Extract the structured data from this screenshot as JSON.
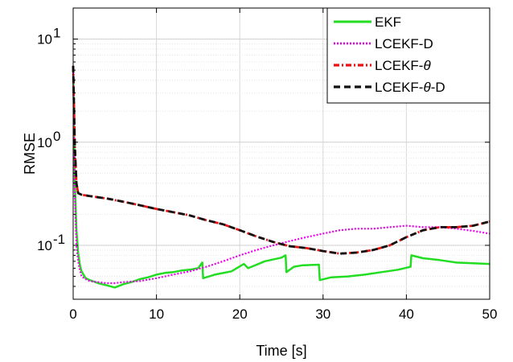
{
  "chart_data": {
    "type": "line",
    "title": "",
    "xlabel": "Time [s]",
    "ylabel": "RMSE",
    "xlim": [
      0,
      50
    ],
    "ylim": [
      0.03,
      20
    ],
    "yscale": "log",
    "grid": true,
    "legend_position": "top-right",
    "x_ticks": [
      "0",
      "10",
      "20",
      "30",
      "40",
      "50"
    ],
    "y_ticks": [
      {
        "base": "10",
        "exp": "-1",
        "value": 0.1
      },
      {
        "base": "10",
        "exp": "0",
        "value": 1
      },
      {
        "base": "10",
        "exp": "1",
        "value": 10
      }
    ],
    "series": [
      {
        "name": "EKF",
        "color": "#22dd22",
        "style": "solid",
        "x": [
          0,
          0.2,
          0.4,
          0.6,
          0.8,
          1,
          1.5,
          2,
          3,
          4,
          5,
          6,
          7,
          8,
          9,
          10,
          11,
          12,
          13,
          14,
          15,
          15.5,
          15.6,
          17,
          19,
          20.5,
          21,
          23,
          25,
          25.5,
          25.6,
          26.5,
          27.5,
          29.5,
          29.6,
          31,
          33,
          35,
          37,
          39,
          40.5,
          40.6,
          42,
          44,
          45,
          46,
          48,
          50
        ],
        "values": [
          5.5,
          0.4,
          0.14,
          0.085,
          0.065,
          0.056,
          0.048,
          0.046,
          0.043,
          0.041,
          0.039,
          0.042,
          0.044,
          0.047,
          0.049,
          0.052,
          0.054,
          0.055,
          0.057,
          0.058,
          0.06,
          0.068,
          0.048,
          0.052,
          0.056,
          0.066,
          0.06,
          0.07,
          0.076,
          0.08,
          0.055,
          0.062,
          0.064,
          0.065,
          0.046,
          0.049,
          0.05,
          0.052,
          0.055,
          0.058,
          0.062,
          0.08,
          0.075,
          0.072,
          0.07,
          0.068,
          0.067,
          0.066
        ]
      },
      {
        "name": "LCEKF-D",
        "color": "#ee00ee",
        "style": "dotted",
        "x": [
          0,
          0.2,
          0.4,
          0.6,
          0.8,
          1,
          1.5,
          2,
          3,
          4,
          5,
          6,
          8,
          10,
          12,
          14,
          16,
          18,
          20,
          22,
          24,
          26,
          28,
          30,
          32,
          34,
          36,
          38,
          40,
          42,
          44,
          46,
          48,
          50
        ],
        "values": [
          5.5,
          0.3,
          0.1,
          0.07,
          0.058,
          0.05,
          0.047,
          0.045,
          0.044,
          0.043,
          0.043,
          0.044,
          0.045,
          0.048,
          0.052,
          0.056,
          0.062,
          0.07,
          0.08,
          0.09,
          0.1,
          0.11,
          0.12,
          0.13,
          0.14,
          0.145,
          0.145,
          0.15,
          0.155,
          0.15,
          0.15,
          0.145,
          0.138,
          0.13
        ]
      },
      {
        "name": "LCEKF-θ",
        "color": "#ee1111",
        "style": "dashdot",
        "x": [
          0,
          0.2,
          0.4,
          0.6,
          1,
          2,
          4,
          6,
          8,
          10,
          12,
          14,
          16,
          18,
          20,
          22,
          24,
          26,
          28,
          30,
          32,
          34,
          36,
          38,
          40,
          42,
          44,
          46,
          48,
          50
        ],
        "values": [
          5.5,
          0.9,
          0.4,
          0.32,
          0.31,
          0.3,
          0.285,
          0.265,
          0.245,
          0.225,
          0.21,
          0.195,
          0.175,
          0.16,
          0.14,
          0.122,
          0.108,
          0.098,
          0.094,
          0.088,
          0.083,
          0.085,
          0.09,
          0.1,
          0.12,
          0.14,
          0.15,
          0.15,
          0.155,
          0.17
        ]
      },
      {
        "name": "LCEKF-θ-D",
        "color": "#111111",
        "style": "dashed",
        "x": [
          0,
          0.2,
          0.4,
          0.6,
          1,
          2,
          4,
          6,
          8,
          10,
          12,
          14,
          16,
          18,
          20,
          22,
          24,
          26,
          28,
          30,
          32,
          34,
          36,
          38,
          40,
          42,
          44,
          46,
          48,
          50
        ],
        "values": [
          5.5,
          0.9,
          0.4,
          0.32,
          0.31,
          0.3,
          0.285,
          0.265,
          0.245,
          0.225,
          0.21,
          0.195,
          0.175,
          0.16,
          0.14,
          0.122,
          0.108,
          0.098,
          0.094,
          0.088,
          0.083,
          0.085,
          0.09,
          0.1,
          0.12,
          0.14,
          0.15,
          0.15,
          0.155,
          0.17
        ]
      }
    ],
    "legend": [
      {
        "prefix": "EKF",
        "symbol": "",
        "suffix": ""
      },
      {
        "prefix": "LCEKF-D",
        "symbol": "",
        "suffix": ""
      },
      {
        "prefix": "LCEKF-",
        "symbol": "θ",
        "suffix": ""
      },
      {
        "prefix": "LCEKF-",
        "symbol": "θ",
        "suffix": "-D"
      }
    ]
  }
}
